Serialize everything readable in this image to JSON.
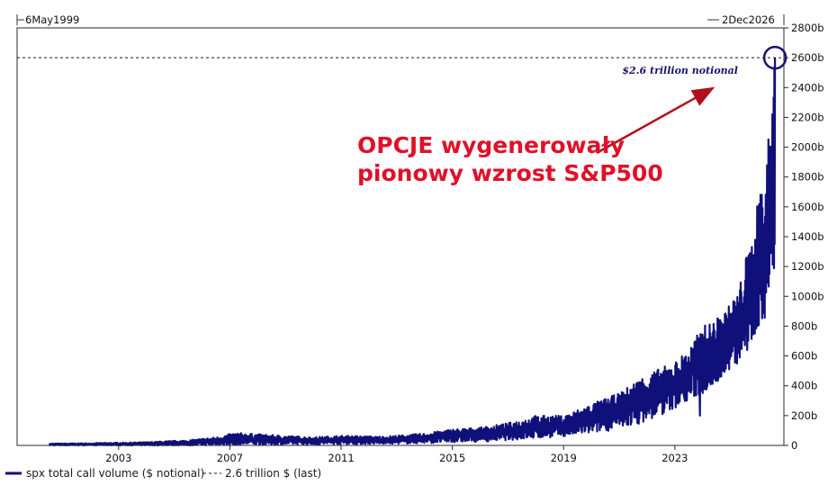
{
  "colors": {
    "series": "#10107a",
    "reference": "#1a1a1a",
    "callout": "#e0102a",
    "arrow": "#b0101a",
    "frame": "#2a2a2a",
    "background": "#ffffff"
  },
  "range_labels": {
    "start": "6May1999",
    "end": "2Dec2026"
  },
  "annotations": {
    "callout_line1": "OPCJE wygenerowały",
    "callout_line2": "pionowy wzrost S&P500",
    "note": "$2.6 trillion notional"
  },
  "legend": {
    "series_label": "spx total call volume ($ notional)",
    "reference_label": "2.6 trillion $ (last)"
  },
  "chart_data": {
    "type": "line",
    "xlim": [
      1999.35,
      2026.92
    ],
    "ylim": [
      0,
      2800
    ],
    "x_ticks": [
      {
        "label": "2003",
        "value": 2003
      },
      {
        "label": "2007",
        "value": 2007
      },
      {
        "label": "2011",
        "value": 2011
      },
      {
        "label": "2015",
        "value": 2015
      },
      {
        "label": "2019",
        "value": 2019
      },
      {
        "label": "2023",
        "value": 2023
      }
    ],
    "y_ticks": [
      {
        "label": "0",
        "value": 0
      },
      {
        "label": "200b",
        "value": 200
      },
      {
        "label": "400b",
        "value": 400
      },
      {
        "label": "600b",
        "value": 600
      },
      {
        "label": "800b",
        "value": 800
      },
      {
        "label": "1000b",
        "value": 1000
      },
      {
        "label": "1200b",
        "value": 1200
      },
      {
        "label": "1400b",
        "value": 1400
      },
      {
        "label": "1600b",
        "value": 1600
      },
      {
        "label": "1800b",
        "value": 1800
      },
      {
        "label": "2000b",
        "value": 2000
      },
      {
        "label": "2200b",
        "value": 2200
      },
      {
        "label": "2400b",
        "value": 2400
      },
      {
        "label": "2600b",
        "value": 2600
      },
      {
        "label": "2800b",
        "value": 2800
      }
    ],
    "reference_line": {
      "value": 2600
    },
    "series": [
      {
        "name": "spx total call volume ($ notional)",
        "envelope": {
          "x": [
            2000.5,
            2002.0,
            2004.0,
            2005.5,
            2006.5,
            2007.2,
            2008.5,
            2010.0,
            2011.0,
            2012.5,
            2014.0,
            2015.0,
            2016.0,
            2017.0,
            2018.0,
            2019.0,
            2020.0,
            2021.0,
            2021.8,
            2022.5,
            2023.0,
            2023.5,
            2024.0,
            2024.5,
            2025.0,
            2025.3,
            2025.6,
            2025.9,
            2026.05,
            2026.15,
            2026.3,
            2026.45,
            2026.6
          ],
          "low": [
            0,
            0,
            0,
            0,
            1,
            3,
            5,
            6,
            8,
            10,
            14,
            20,
            25,
            35,
            45,
            60,
            80,
            110,
            150,
            200,
            250,
            300,
            340,
            420,
            500,
            550,
            650,
            700,
            750,
            800,
            900,
            1000,
            1100
          ],
          "high": [
            12,
            15,
            22,
            35,
            55,
            85,
            70,
            55,
            65,
            60,
            80,
            110,
            120,
            150,
            200,
            200,
            280,
            350,
            460,
            520,
            560,
            650,
            800,
            850,
            950,
            1050,
            1300,
            1450,
            1850,
            1700,
            1950,
            2300,
            2600
          ]
        },
        "dips": [
          {
            "x": 2023.9,
            "value": 200
          },
          {
            "x": 2025.6,
            "value": 640
          },
          {
            "x": 2026.4,
            "value": 1150
          }
        ],
        "last": {
          "x": 2026.6,
          "value": 2600
        }
      }
    ]
  }
}
